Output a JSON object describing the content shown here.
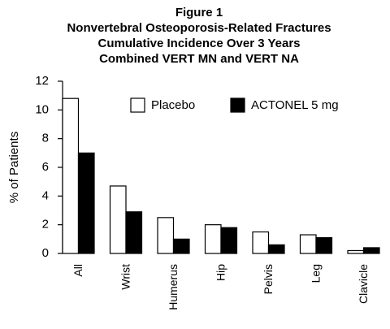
{
  "chart_data": {
    "type": "bar",
    "title": [
      "Figure 1",
      "Nonvertebral Osteoporosis-Related Fractures",
      "Cumulative Incidence Over 3 Years",
      "Combined VERT MN and VERT NA"
    ],
    "ylabel": "% of Patients",
    "categories": [
      "All",
      "Wrist",
      "Humerus",
      "Hip",
      "Pelvis",
      "Leg",
      "Clavicle"
    ],
    "series": [
      {
        "name": "Placebo",
        "color": "#ffffff",
        "values": [
          10.8,
          4.7,
          2.5,
          2.0,
          1.5,
          1.3,
          0.2
        ]
      },
      {
        "name": "ACTONEL 5 mg",
        "color": "#000000",
        "values": [
          7.0,
          2.9,
          1.0,
          1.8,
          0.6,
          1.1,
          0.4
        ]
      }
    ],
    "ylim": [
      0,
      12
    ],
    "yticks": [
      0,
      2,
      4,
      6,
      8,
      10,
      12
    ],
    "grid": false,
    "legend": "top-right"
  }
}
